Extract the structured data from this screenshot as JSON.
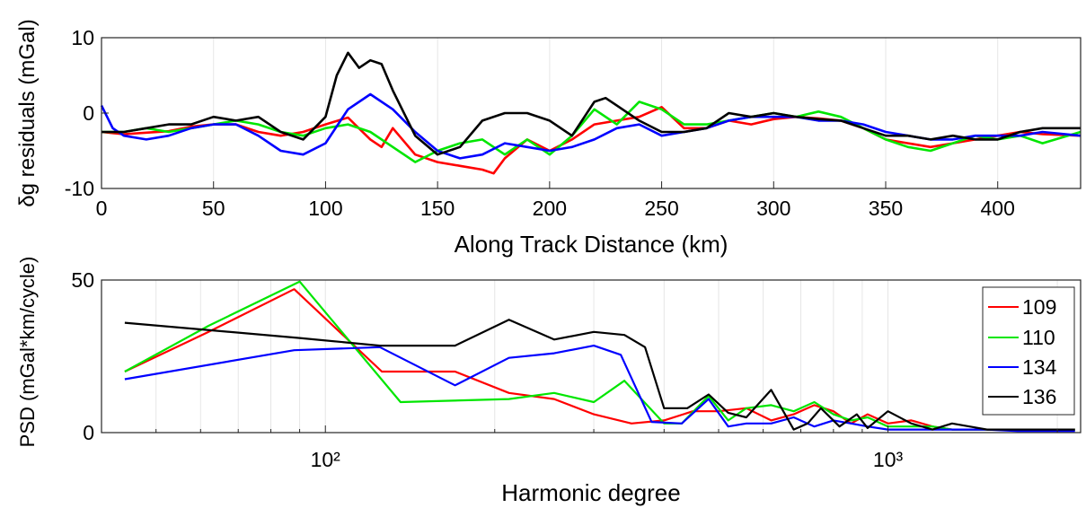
{
  "chart_data": [
    {
      "type": "line",
      "title": "",
      "xlabel": "Along Track Distance (km)",
      "ylabel": "δg residuals (mGal)",
      "xlim": [
        0,
        437
      ],
      "ylim": [
        -10,
        10
      ],
      "xticks": [
        0,
        50,
        100,
        150,
        200,
        250,
        300,
        350,
        400
      ],
      "yticks": [
        -10,
        0,
        10
      ],
      "grid": "x-only",
      "series": [
        {
          "color": "#ff0000",
          "x": [
            0,
            10,
            20,
            30,
            40,
            50,
            60,
            70,
            80,
            90,
            100,
            110,
            120,
            125,
            130,
            140,
            150,
            160,
            170,
            175,
            180,
            190,
            200,
            210,
            220,
            230,
            240,
            250,
            260,
            270,
            280,
            290,
            300,
            310,
            320,
            330,
            340,
            350,
            360,
            370,
            380,
            390,
            400,
            410,
            420,
            437
          ],
          "y": [
            -2.5,
            -2.8,
            -2.6,
            -2.4,
            -1.8,
            -1.5,
            -1.5,
            -2.5,
            -3.0,
            -2.5,
            -1.5,
            -0.6,
            -3.5,
            -4.5,
            -2.0,
            -5.5,
            -6.5,
            -7.0,
            -7.5,
            -8.0,
            -6.0,
            -3.5,
            -5.0,
            -3.5,
            -1.5,
            -1.0,
            -0.5,
            0.8,
            -2.0,
            -2.0,
            -1.0,
            -1.5,
            -0.8,
            -0.5,
            -0.7,
            -1.0,
            -2.0,
            -3.5,
            -4.0,
            -4.5,
            -4.0,
            -3.5,
            -3.0,
            -2.5,
            -2.8,
            -3.0
          ]
        },
        {
          "color": "#00e600",
          "x": [
            0,
            10,
            20,
            30,
            40,
            50,
            60,
            70,
            80,
            90,
            100,
            110,
            120,
            130,
            140,
            150,
            160,
            170,
            180,
            190,
            200,
            210,
            220,
            230,
            240,
            250,
            260,
            270,
            280,
            290,
            300,
            310,
            320,
            330,
            340,
            350,
            360,
            370,
            380,
            390,
            400,
            410,
            420,
            437
          ],
          "y": [
            -2.5,
            -2.5,
            -2.0,
            -2.5,
            -2.0,
            -1.5,
            -1.0,
            -1.5,
            -2.5,
            -3.0,
            -2.0,
            -1.5,
            -2.5,
            -4.5,
            -6.5,
            -5.0,
            -4.0,
            -3.5,
            -5.5,
            -3.5,
            -5.5,
            -3.0,
            0.5,
            -1.5,
            1.5,
            0.5,
            -1.5,
            -1.5,
            -1.0,
            -0.5,
            0,
            -0.5,
            0.2,
            -0.5,
            -2.0,
            -3.5,
            -4.5,
            -5.0,
            -4.0,
            -3.0,
            -3.5,
            -3.0,
            -4.0,
            -2.5
          ]
        },
        {
          "color": "#0000ff",
          "x": [
            0,
            5,
            10,
            20,
            30,
            40,
            50,
            60,
            70,
            80,
            90,
            100,
            110,
            120,
            130,
            140,
            150,
            160,
            170,
            180,
            190,
            200,
            210,
            220,
            230,
            240,
            250,
            260,
            270,
            280,
            290,
            300,
            310,
            320,
            330,
            340,
            350,
            360,
            370,
            380,
            390,
            400,
            410,
            420,
            437
          ],
          "y": [
            1.0,
            -2.0,
            -3.0,
            -3.5,
            -3.0,
            -2.0,
            -1.5,
            -1.5,
            -3.0,
            -5.0,
            -5.5,
            -4.0,
            0.5,
            2.5,
            0.5,
            -2.5,
            -5.0,
            -6.0,
            -5.5,
            -4.0,
            -4.5,
            -5.0,
            -4.5,
            -3.5,
            -2.0,
            -1.5,
            -3.0,
            -2.5,
            -2.0,
            -1.0,
            -0.5,
            -0.5,
            -0.5,
            -1.0,
            -1.0,
            -1.5,
            -2.5,
            -3.0,
            -3.5,
            -3.5,
            -3.0,
            -3.0,
            -3.0,
            -2.5,
            -3.0
          ]
        },
        {
          "color": "#000000",
          "x": [
            0,
            10,
            20,
            30,
            40,
            50,
            60,
            70,
            80,
            90,
            100,
            105,
            110,
            115,
            120,
            125,
            130,
            140,
            150,
            160,
            170,
            180,
            190,
            200,
            210,
            220,
            225,
            230,
            240,
            250,
            260,
            270,
            280,
            290,
            300,
            310,
            320,
            330,
            340,
            350,
            360,
            370,
            380,
            390,
            400,
            410,
            420,
            437
          ],
          "y": [
            -2.5,
            -2.5,
            -2.0,
            -1.5,
            -1.5,
            -0.5,
            -1.0,
            -0.5,
            -2.5,
            -3.5,
            -0.5,
            5.0,
            8.0,
            6.0,
            7.0,
            6.5,
            3.0,
            -3.0,
            -5.5,
            -4.5,
            -1.0,
            0,
            0,
            -1.0,
            -3.0,
            1.5,
            2.0,
            1.0,
            -1.0,
            -2.5,
            -2.5,
            -2.0,
            0,
            -0.5,
            0,
            -0.5,
            -0.8,
            -1.0,
            -2.0,
            -3.0,
            -3.0,
            -3.5,
            -3.0,
            -3.5,
            -3.5,
            -2.5,
            -2.0,
            -2.0
          ]
        }
      ]
    },
    {
      "type": "line",
      "title": "",
      "xlabel": "Harmonic degree",
      "ylabel": "PSD (mGal*km/cycle)",
      "xscale": "log",
      "xlim": [
        40,
        2200
      ],
      "ylim": [
        0,
        50
      ],
      "xticks": [
        100,
        1000
      ],
      "xtick_labels": [
        "10²",
        "10³"
      ],
      "yticks": [
        0,
        50
      ],
      "grid": "x-minor-log",
      "legend": {
        "position": "top-right",
        "entries": [
          "109",
          "110",
          "134",
          "136"
        ]
      },
      "series": [
        {
          "name": "109",
          "color": "#ff0000",
          "x": [
            44,
            62,
            88,
            126,
            170,
            212,
            255,
            300,
            350,
            400,
            450,
            500,
            560,
            620,
            680,
            740,
            800,
            860,
            920,
            1000,
            1100,
            1200,
            1300,
            1500,
            1700,
            1900,
            2150
          ],
          "y": [
            20,
            33,
            47,
            20,
            20,
            13,
            11,
            6,
            3,
            4,
            7,
            7,
            8,
            4,
            6,
            9,
            7,
            3,
            6,
            3,
            4,
            2,
            1,
            1,
            1,
            1,
            1
          ]
        },
        {
          "name": "110",
          "color": "#00e600",
          "x": [
            44,
            62,
            90,
            136,
            212,
            255,
            300,
            340,
            400,
            430,
            480,
            520,
            560,
            620,
            680,
            740,
            800,
            860,
            920,
            1000,
            1100,
            1200,
            1300,
            1500,
            1700,
            1900,
            2150
          ],
          "y": [
            20,
            35,
            49.5,
            10,
            11,
            13,
            10,
            17,
            3,
            3,
            12,
            4,
            8,
            9,
            7,
            10,
            6,
            4,
            5,
            2,
            2,
            2,
            1,
            1,
            1,
            1,
            1
          ]
        },
        {
          "name": "134",
          "color": "#0000ff",
          "x": [
            44,
            88,
            125,
            170,
            212,
            255,
            300,
            335,
            380,
            430,
            480,
            520,
            560,
            620,
            680,
            740,
            800,
            860,
            920,
            1000,
            1100,
            1200,
            1300,
            1500,
            1700,
            1900,
            2150
          ],
          "y": [
            17.5,
            27,
            28,
            15.5,
            24.5,
            26,
            28.5,
            25.5,
            3.5,
            3,
            11,
            2,
            3,
            3,
            5,
            2,
            4,
            3,
            2,
            1,
            1,
            1,
            1,
            1,
            0.5,
            0.5,
            0.5
          ]
        },
        {
          "name": "136",
          "color": "#000000",
          "x": [
            44,
            90,
            125,
            170,
            212,
            255,
            300,
            340,
            370,
            400,
            440,
            480,
            520,
            560,
            620,
            680,
            720,
            760,
            820,
            880,
            920,
            1000,
            1100,
            1200,
            1300,
            1500,
            1700,
            1900,
            2150
          ],
          "y": [
            36,
            31,
            28.5,
            28.5,
            37,
            30.5,
            33,
            32,
            28,
            8,
            8,
            12.5,
            6.5,
            5,
            14,
            1,
            3,
            8,
            2,
            6,
            1.5,
            7,
            3,
            1,
            3,
            1,
            1,
            1,
            1
          ]
        }
      ]
    }
  ]
}
